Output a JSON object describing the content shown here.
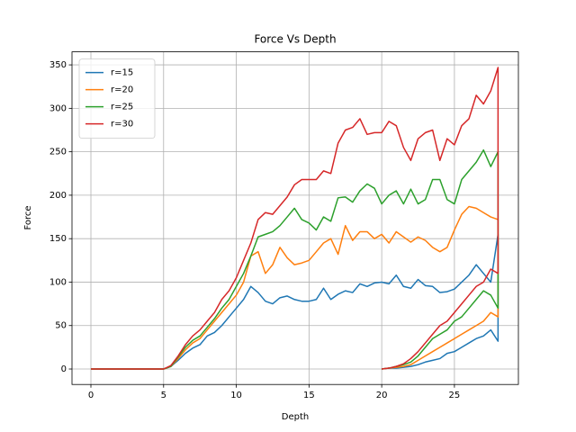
{
  "chart_data": {
    "type": "line",
    "title": "Force Vs Depth",
    "x_label": "Depth",
    "y_label": "Force",
    "x": [
      0,
      1,
      2,
      3,
      4,
      5,
      5.5,
      6,
      6.5,
      7,
      7.5,
      8,
      8.5,
      9,
      9.5,
      10,
      10.5,
      11,
      11.5,
      12,
      12.5,
      13,
      13.5,
      14,
      14.5,
      15,
      15.5,
      16,
      16.5,
      17,
      17.5,
      18,
      18.5,
      19,
      19.5,
      20,
      20.5,
      21,
      21.5,
      22,
      22.5,
      23,
      23.5,
      24,
      24.5,
      25,
      25.5,
      26,
      26.5,
      27,
      27.5,
      28,
      28,
      27.5,
      27,
      26.5,
      26,
      25.5,
      25,
      24.5,
      24,
      23.5,
      23,
      22.5,
      22,
      21.5,
      21,
      20.5,
      20
    ],
    "series": [
      {
        "name": "r=15",
        "color": "#1f77b4",
        "values": [
          0,
          0,
          0,
          0,
          0,
          0,
          3,
          10,
          18,
          24,
          28,
          38,
          42,
          50,
          60,
          70,
          80,
          95,
          88,
          78,
          75,
          82,
          84,
          80,
          78,
          78,
          80,
          93,
          80,
          86,
          90,
          88,
          98,
          95,
          99,
          100,
          98,
          108,
          95,
          93,
          103,
          96,
          95,
          88,
          89,
          92,
          100,
          108,
          120,
          110,
          100,
          155,
          32,
          45,
          38,
          35,
          30,
          25,
          20,
          18,
          12,
          10,
          8,
          5,
          3,
          2,
          1,
          1,
          0
        ]
      },
      {
        "name": "r=20",
        "color": "#ff7f0e",
        "values": [
          0,
          0,
          0,
          0,
          0,
          0,
          3,
          12,
          22,
          30,
          35,
          45,
          55,
          65,
          75,
          85,
          100,
          130,
          135,
          110,
          120,
          140,
          128,
          120,
          122,
          125,
          135,
          145,
          150,
          132,
          165,
          148,
          158,
          158,
          150,
          155,
          145,
          158,
          152,
          146,
          152,
          148,
          140,
          135,
          140,
          160,
          178,
          187,
          185,
          180,
          175,
          172,
          60,
          65,
          55,
          50,
          45,
          40,
          35,
          30,
          25,
          20,
          15,
          10,
          5,
          3,
          2,
          1,
          0
        ]
      },
      {
        "name": "r=25",
        "color": "#2ca02c",
        "values": [
          0,
          0,
          0,
          0,
          0,
          0,
          3,
          14,
          25,
          33,
          38,
          48,
          58,
          70,
          80,
          95,
          110,
          130,
          152,
          155,
          158,
          165,
          175,
          185,
          172,
          168,
          160,
          175,
          170,
          197,
          198,
          192,
          205,
          213,
          208,
          190,
          200,
          205,
          190,
          207,
          190,
          195,
          218,
          218,
          195,
          190,
          218,
          228,
          238,
          252,
          233,
          250,
          70,
          85,
          90,
          80,
          70,
          60,
          55,
          45,
          40,
          35,
          25,
          15,
          8,
          5,
          3,
          1,
          0
        ]
      },
      {
        "name": "r=30",
        "color": "#d62728",
        "values": [
          0,
          0,
          0,
          0,
          0,
          0,
          4,
          15,
          28,
          38,
          45,
          55,
          65,
          80,
          90,
          105,
          125,
          145,
          172,
          180,
          178,
          188,
          198,
          212,
          218,
          218,
          218,
          228,
          225,
          260,
          275,
          278,
          288,
          270,
          272,
          272,
          285,
          280,
          255,
          240,
          265,
          272,
          275,
          240,
          265,
          258,
          280,
          288,
          315,
          305,
          320,
          347,
          110,
          115,
          100,
          95,
          85,
          75,
          65,
          55,
          50,
          40,
          30,
          20,
          12,
          6,
          3,
          1,
          0
        ]
      }
    ],
    "xlim": [
      -1.3,
      29.4
    ],
    "ylim": [
      -17.8,
      365
    ],
    "xticks": [
      0,
      5,
      10,
      15,
      20,
      25
    ],
    "yticks": [
      0,
      50,
      100,
      150,
      200,
      250,
      300,
      350
    ],
    "grid": true,
    "legend": "upper left"
  }
}
